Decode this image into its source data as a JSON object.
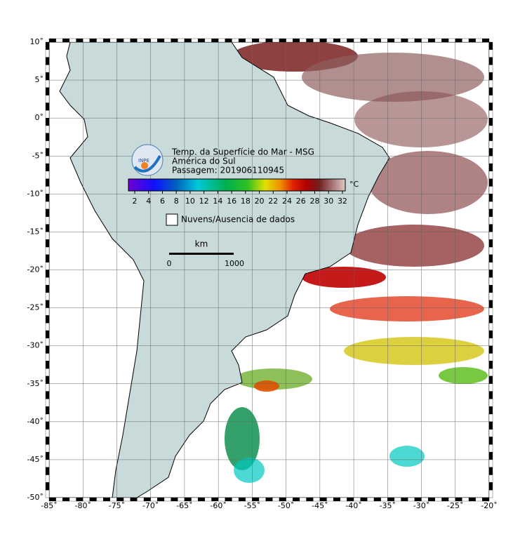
{
  "header": {
    "logo": "INPE",
    "lines": [
      "Temp. da Superfície do Mar - MSG",
      "América do Sul",
      "Passagem: 201906110945"
    ]
  },
  "colorbar": {
    "unit": "°C",
    "ticks": [
      2,
      4,
      6,
      8,
      10,
      12,
      14,
      16,
      18,
      20,
      22,
      24,
      26,
      28,
      30,
      32
    ]
  },
  "legend": {
    "label": "Nuvens/Ausencia de dados"
  },
  "scale": {
    "unit": "km",
    "start": "0",
    "end": "1000"
  },
  "map": {
    "lonlim": [
      -85,
      -20
    ],
    "latlim": [
      10,
      -50
    ],
    "lonticks": [
      {
        "value": -85,
        "label": "-85˚"
      },
      {
        "value": -80,
        "label": "-80˚"
      },
      {
        "value": -75,
        "label": "-75˚"
      },
      {
        "value": -70,
        "label": "-70˚"
      },
      {
        "value": -65,
        "label": "-65˚"
      },
      {
        "value": -60,
        "label": "-60˚"
      },
      {
        "value": -55,
        "label": "-55˚"
      },
      {
        "value": -50,
        "label": "-50˚"
      },
      {
        "value": -45,
        "label": "-45˚"
      },
      {
        "value": -40,
        "label": "-40˚"
      },
      {
        "value": -35,
        "label": "-35˚"
      },
      {
        "value": -30,
        "label": "-30˚"
      },
      {
        "value": -25,
        "label": "-25˚"
      },
      {
        "value": -20,
        "label": "-20˚"
      }
    ],
    "latticks": [
      {
        "value": 10,
        "label": "10˚"
      },
      {
        "value": 5,
        "label": "5˚"
      },
      {
        "value": 0,
        "label": "0˚"
      },
      {
        "value": -5,
        "label": "-5˚"
      },
      {
        "value": -10,
        "label": "-10˚"
      },
      {
        "value": -15,
        "label": "-15˚"
      },
      {
        "value": -20,
        "label": "-20˚"
      },
      {
        "value": -25,
        "label": "-25˚"
      },
      {
        "value": -30,
        "label": "-30˚"
      },
      {
        "value": -35,
        "label": "-35˚"
      },
      {
        "value": -40,
        "label": "-40˚"
      },
      {
        "value": -45,
        "label": "-45˚"
      },
      {
        "value": -50,
        "label": "-50˚"
      }
    ]
  }
}
